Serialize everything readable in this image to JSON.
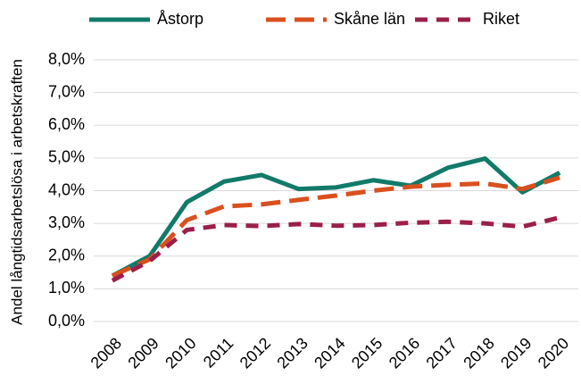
{
  "chart_data": {
    "type": "line",
    "y_label": "Andel långtidsarbetslösa i arbetskraften",
    "categories": [
      "2008",
      "2009",
      "2010",
      "2011",
      "2012",
      "2013",
      "2014",
      "2015",
      "2016",
      "2017",
      "2018",
      "2019",
      "2020"
    ],
    "series": [
      {
        "name": "Åstorp",
        "color": "#127a68",
        "style": "solid",
        "values": [
          1.4,
          2.0,
          3.65,
          4.28,
          4.48,
          4.05,
          4.1,
          4.32,
          4.15,
          4.7,
          4.98,
          3.95,
          4.55
        ]
      },
      {
        "name": "Skåne län",
        "color": "#d9501e",
        "style": "dashed",
        "values": [
          1.4,
          1.9,
          3.1,
          3.52,
          3.58,
          3.72,
          3.85,
          4.0,
          4.12,
          4.18,
          4.22,
          4.05,
          4.4
        ]
      },
      {
        "name": "Riket",
        "color": "#9b1f4a",
        "style": "dashed",
        "values": [
          1.25,
          1.85,
          2.8,
          2.95,
          2.92,
          2.98,
          2.93,
          2.95,
          3.02,
          3.05,
          3.0,
          2.9,
          3.18
        ]
      }
    ],
    "ylim": [
      0,
      8
    ],
    "yticks": [
      {
        "value": 0,
        "label": "0,0%"
      },
      {
        "value": 1,
        "label": "1,0%"
      },
      {
        "value": 2,
        "label": "2,0%"
      },
      {
        "value": 3,
        "label": "3,0%"
      },
      {
        "value": 4,
        "label": "4,0%"
      },
      {
        "value": 5,
        "label": "5,0%"
      },
      {
        "value": 6,
        "label": "6,0%"
      },
      {
        "value": 7,
        "label": "7,0%"
      },
      {
        "value": 8,
        "label": "8,0%"
      }
    ],
    "grid": true
  }
}
